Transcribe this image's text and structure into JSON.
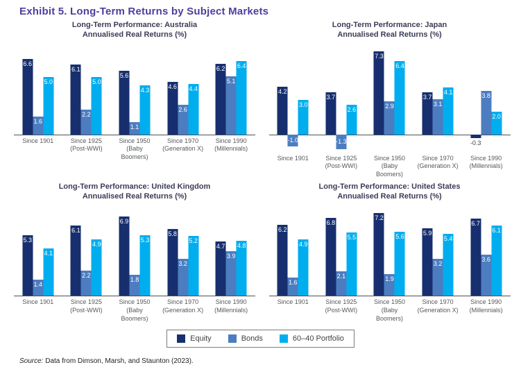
{
  "page": {
    "title": "Exhibit 5. Long-Term Returns by Subject Markets",
    "source_prefix": "Source:",
    "source_text": " Data from Dimson, Marsh, and Staunton (2023)."
  },
  "legend": {
    "position": "bottom-center",
    "border": true,
    "items": [
      {
        "label": "Equity",
        "color": "#172F6E"
      },
      {
        "label": "Bonds",
        "color": "#4C7DC0"
      },
      {
        "label": "60–40 Portfolio",
        "color": "#00AEEF"
      }
    ]
  },
  "chart_data": [
    {
      "type": "bar",
      "id": "australia",
      "title": "Long-Term Performance: Australia",
      "subtitle": "Annualised Real Returns (%)",
      "categories": [
        [
          "Since 1901"
        ],
        [
          "Since 1925",
          "(Post-WWI)"
        ],
        [
          "Since 1950",
          "(Baby",
          "Boomers)"
        ],
        [
          "Since 1970",
          "(Generation X)"
        ],
        [
          "Since 1990",
          "(Millennials)"
        ]
      ],
      "series": [
        {
          "name": "Equity",
          "values": [
            6.6,
            6.1,
            5.6,
            4.6,
            6.2
          ]
        },
        {
          "name": "Bonds",
          "values": [
            1.6,
            2.2,
            1.1,
            2.6,
            5.1
          ]
        },
        {
          "name": "60-40 Portfolio",
          "values": [
            5.0,
            5.0,
            4.3,
            4.4,
            6.4
          ]
        }
      ],
      "ylim": [
        0,
        7.5
      ],
      "grid": false,
      "value_labels": true
    },
    {
      "type": "bar",
      "id": "japan",
      "title": "Long-Term Performance: Japan",
      "subtitle": "Annualised Real Returns (%)",
      "categories": [
        [
          "Since 1901"
        ],
        [
          "Since 1925",
          "(Post-WWI)"
        ],
        [
          "Since 1950",
          "(Baby",
          "Boomers)"
        ],
        [
          "Since 1970",
          "(Generation X)"
        ],
        [
          "Since 1990",
          "(Millennials)"
        ]
      ],
      "series": [
        {
          "name": "Equity",
          "values": [
            4.2,
            3.7,
            7.3,
            3.7,
            -0.3
          ]
        },
        {
          "name": "Bonds",
          "values": [
            -1.0,
            -1.3,
            2.9,
            3.1,
            3.8
          ]
        },
        {
          "name": "60-40 Portfolio",
          "values": [
            3.0,
            2.6,
            6.4,
            4.1,
            2.0
          ]
        }
      ],
      "ylim": [
        -1.5,
        7.5
      ],
      "grid": false,
      "value_labels": true
    },
    {
      "type": "bar",
      "id": "united-kingdom",
      "title": "Long-Term Performance: United Kingdom",
      "subtitle": "Annualised Real Returns (%)",
      "categories": [
        [
          "Since 1901"
        ],
        [
          "Since 1925",
          "(Post-WWI)"
        ],
        [
          "Since 1950",
          "(Baby",
          "Boomers)"
        ],
        [
          "Since 1970",
          "(Generation X)"
        ],
        [
          "Since 1990",
          "(Millennials)"
        ]
      ],
      "series": [
        {
          "name": "Equity",
          "values": [
            5.3,
            6.1,
            6.9,
            5.8,
            4.7
          ]
        },
        {
          "name": "Bonds",
          "values": [
            1.4,
            2.2,
            1.8,
            3.2,
            3.9
          ]
        },
        {
          "name": "60-40 Portfolio",
          "values": [
            4.1,
            4.9,
            5.3,
            5.2,
            4.8
          ]
        }
      ],
      "ylim": [
        0,
        7.5
      ],
      "grid": false,
      "value_labels": true
    },
    {
      "type": "bar",
      "id": "united-states",
      "title": "Long-Term Performance: United States",
      "subtitle": "Annualised Real Returns (%)",
      "categories": [
        [
          "Since 1901"
        ],
        [
          "Since 1925",
          "(Post-WWI)"
        ],
        [
          "Since 1950",
          "(Baby",
          "Boomers)"
        ],
        [
          "Since 1970",
          "(Generation X)"
        ],
        [
          "Since 1990",
          "(Millennials)"
        ]
      ],
      "series": [
        {
          "name": "Equity",
          "values": [
            6.2,
            6.8,
            7.2,
            5.9,
            6.7
          ]
        },
        {
          "name": "Bonds",
          "values": [
            1.6,
            2.1,
            1.9,
            3.2,
            3.6
          ]
        },
        {
          "name": "60-40 Portfolio",
          "values": [
            4.9,
            5.5,
            5.6,
            5.4,
            6.1
          ]
        }
      ],
      "ylim": [
        0,
        7.5
      ],
      "grid": false,
      "value_labels": true
    }
  ]
}
